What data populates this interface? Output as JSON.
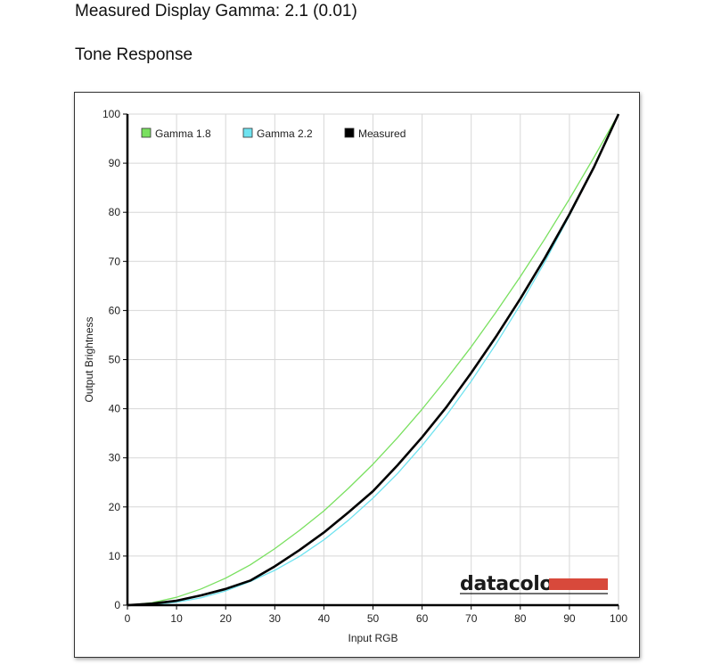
{
  "page": {
    "gamma_heading": "Measured Display Gamma: 2.1 (0.01)",
    "tone_heading": "Tone Response"
  },
  "logo": {
    "text": "datacolor",
    "accent_color": "#d8493b"
  },
  "chart_data": {
    "type": "line",
    "xlabel": "Input RGB",
    "ylabel": "Output Brightness",
    "xlim": [
      0,
      100
    ],
    "ylim": [
      0,
      100
    ],
    "xticks": [
      0,
      10,
      20,
      30,
      40,
      50,
      60,
      70,
      80,
      90,
      100
    ],
    "yticks": [
      0,
      10,
      20,
      30,
      40,
      50,
      60,
      70,
      80,
      90,
      100
    ],
    "grid": true,
    "legend_position": "top-left",
    "x": [
      0,
      5,
      10,
      15,
      20,
      25,
      30,
      35,
      40,
      45,
      50,
      55,
      60,
      65,
      70,
      75,
      80,
      85,
      90,
      95,
      100
    ],
    "series": [
      {
        "name": "Gamma 1.8",
        "color": "#79e05f",
        "values": [
          0,
          0.5,
          1.6,
          3.3,
          5.5,
          8.2,
          11.5,
          15.2,
          19.2,
          23.8,
          28.7,
          34.1,
          39.9,
          46.1,
          52.6,
          59.6,
          66.9,
          74.6,
          82.7,
          91.2,
          100
        ]
      },
      {
        "name": "Gamma 2.2",
        "color": "#6fe3f0",
        "values": [
          0,
          0.1,
          0.6,
          1.5,
          2.9,
          4.8,
          7.1,
          9.9,
          13.3,
          17.3,
          21.8,
          26.8,
          32.5,
          38.7,
          45.6,
          53.1,
          61.2,
          69.9,
          79.3,
          89.3,
          100
        ]
      },
      {
        "name": "Measured",
        "color": "#000000",
        "values": [
          0,
          0.3,
          0.9,
          2.0,
          3.3,
          5.0,
          7.9,
          11.2,
          14.8,
          18.9,
          23.2,
          28.5,
          34.2,
          40.4,
          47.3,
          54.6,
          62.4,
          70.7,
          79.6,
          89.2,
          100
        ]
      }
    ]
  }
}
